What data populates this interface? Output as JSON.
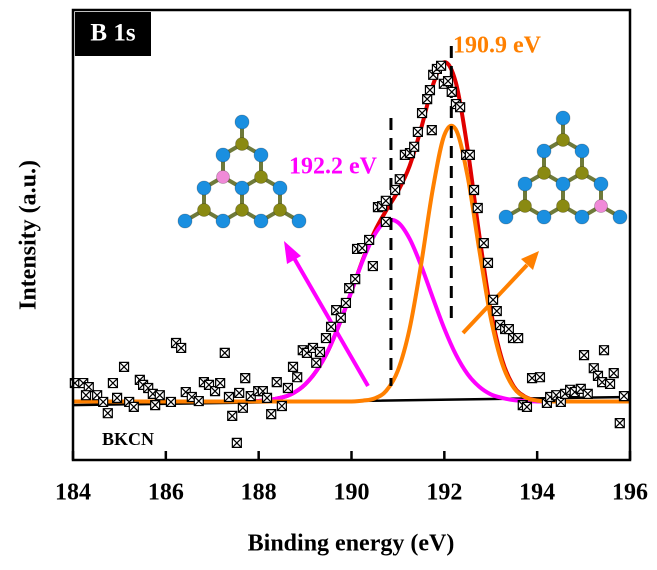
{
  "chart_data": {
    "type": "scatter",
    "title": "B 1s",
    "xlabel": "Binding energy (eV)",
    "ylabel": "Intensity (a.u.)",
    "xlim": [
      184,
      196
    ],
    "xticks": [
      184,
      186,
      188,
      190,
      192,
      194,
      196
    ],
    "ylim": [
      0,
      100
    ],
    "annotations": [
      {
        "text": "190.9 eV",
        "color": "#ff8000"
      },
      {
        "text": "192.2 eV",
        "color": "#ff00ff"
      },
      {
        "text": "BKCN",
        "color": "#000000"
      }
    ],
    "peak_lines": [
      190.85,
      192.15
    ],
    "series": [
      {
        "type": "line",
        "color": "#000000",
        "x": [
          184,
          196
        ],
        "values": [
          12.2,
          14.0
        ]
      },
      {
        "type": "line",
        "color": "#e00000",
        "x": [
          184,
          185,
          186,
          187,
          188,
          188.5,
          188.75,
          189,
          189.25,
          189.5,
          189.75,
          190,
          190.25,
          190.5,
          190.75,
          191,
          191.25,
          191.5,
          191.75,
          192,
          192.25,
          192.5,
          192.75,
          193,
          193.25,
          193.5,
          193.75,
          194,
          194.25,
          194.5,
          195,
          196
        ],
        "values": [
          13,
          13,
          13,
          13,
          13.1,
          13.9,
          14.9,
          16.8,
          19.9,
          24.4,
          30.5,
          37.5,
          44.7,
          50.8,
          55.5,
          59.7,
          65.3,
          73.7,
          83.2,
          88.4,
          83.8,
          69.2,
          50.2,
          33.2,
          22.1,
          16.3,
          14.0,
          13.2,
          13.0,
          13.0,
          13,
          13
        ]
      },
      {
        "type": "line",
        "color": "#ff00ff",
        "x": [
          184,
          185,
          186,
          187,
          188,
          188.5,
          188.75,
          189,
          189.25,
          189.5,
          189.75,
          190,
          190.25,
          190.5,
          190.75,
          191,
          191.25,
          191.5,
          191.75,
          192,
          192.25,
          192.5,
          192.75,
          193,
          193.25,
          193.5,
          193.75,
          194,
          194.25,
          194.5,
          195,
          196
        ],
        "values": [
          13,
          13,
          13,
          13,
          13.1,
          13.9,
          14.9,
          16.8,
          19.9,
          24.4,
          30.5,
          37.5,
          44.5,
          50.1,
          53.1,
          52.8,
          49.2,
          43.2,
          36.1,
          29.2,
          23.4,
          19.1,
          16.3,
          14.6,
          13.8,
          13.3,
          13.1,
          13,
          13,
          13,
          13,
          13
        ]
      },
      {
        "type": "line",
        "color": "#ff8000",
        "x": [
          184,
          185,
          186,
          187,
          188,
          188.5,
          188.75,
          189,
          189.25,
          189.5,
          189.75,
          190,
          190.25,
          190.5,
          190.75,
          191,
          191.25,
          191.5,
          191.75,
          192,
          192.25,
          192.5,
          192.75,
          193,
          193.25,
          193.5,
          193.75,
          194,
          194.25,
          194.5,
          195,
          196
        ],
        "values": [
          13,
          13,
          13,
          13,
          13,
          13,
          13,
          13,
          13,
          13,
          13,
          13.0,
          13.2,
          13.7,
          15.4,
          19.9,
          29.1,
          43.5,
          60.1,
          72.2,
          73.4,
          63.1,
          46.9,
          31.6,
          21.3,
          16.0,
          13.9,
          13.2,
          13,
          13,
          13,
          13
        ]
      },
      {
        "type": "scatter",
        "color": "#000000",
        "x": [
          184.04,
          184.22,
          184.34,
          184.28,
          184.52,
          184.65,
          184.75,
          184.86,
          184.95,
          185.1,
          185.21,
          185.31,
          185.44,
          185.51,
          185.62,
          185.72,
          185.77,
          185.87,
          186.11,
          186.22,
          186.33,
          186.43,
          186.56,
          186.71,
          186.82,
          186.93,
          187.06,
          187.17,
          187.27,
          187.36,
          187.43,
          187.53,
          187.58,
          187.66,
          187.71,
          187.83,
          187.99,
          188.09,
          188.18,
          188.27,
          188.39,
          188.5,
          188.63,
          188.74,
          188.83,
          188.95,
          189.04,
          189.17,
          189.24,
          189.32,
          189.45,
          189.56,
          189.67,
          189.77,
          189.88,
          189.95,
          190.08,
          190.12,
          190.23,
          190.38,
          190.46,
          190.57,
          190.66,
          190.74,
          190.74,
          190.94,
          191.04,
          191.15,
          191.26,
          191.35,
          191.43,
          191.52,
          191.63,
          191.69,
          191.76,
          191.73,
          191.84,
          191.93,
          191.99,
          192.08,
          192.16,
          192.25,
          192.34,
          192.47,
          192.55,
          192.64,
          192.72,
          192.85,
          192.94,
          193.05,
          193.13,
          193.2,
          193.31,
          193.39,
          193.48,
          193.59,
          193.69,
          193.78,
          193.89,
          194.06,
          194.21,
          194.28,
          194.41,
          194.51,
          194.6,
          194.71,
          194.81,
          194.94,
          195.01,
          195.09,
          195.22,
          195.31,
          195.4,
          195.44,
          195.57,
          195.65,
          195.78,
          195.87
        ],
        "values": [
          17.1,
          17.1,
          16.2,
          14.4,
          14.4,
          12.9,
          10.4,
          17.1,
          13.8,
          20.7,
          12.9,
          11.8,
          17.8,
          16.7,
          16.0,
          14.7,
          12.2,
          14.4,
          12.9,
          26.0,
          24.9,
          15.1,
          14.0,
          13.1,
          17.3,
          16.7,
          15.3,
          17.1,
          23.8,
          14.0,
          9.8,
          3.8,
          14.9,
          11.6,
          18.2,
          14.2,
          15.3,
          15.3,
          13.8,
          10.2,
          17.3,
          12.0,
          16.0,
          20.7,
          18.4,
          24.4,
          23.8,
          24.9,
          21.6,
          24.0,
          27.1,
          29.6,
          33.3,
          31.6,
          34.9,
          38.2,
          40.2,
          46.9,
          47.1,
          48.9,
          43.1,
          56.2,
          56.4,
          57.6,
          52.9,
          60.0,
          62.4,
          67.8,
          68.2,
          69.6,
          72.9,
          77.1,
          80.2,
          82.2,
          85.6,
          73.3,
          86.9,
          87.6,
          83.6,
          84.2,
          81.8,
          79.1,
          78.4,
          67.8,
          67.8,
          60.0,
          56.0,
          48.2,
          43.8,
          35.6,
          33.1,
          30.0,
          29.1,
          29.1,
          27.1,
          27.1,
          12.2,
          11.8,
          18.2,
          18.4,
          12.7,
          14.0,
          14.4,
          12.9,
          14.7,
          15.6,
          15.1,
          15.8,
          23.3,
          14.7,
          20.4,
          18.7,
          17.3,
          24.4,
          16.9,
          19.3,
          8.2,
          14.2
        ]
      }
    ]
  }
}
